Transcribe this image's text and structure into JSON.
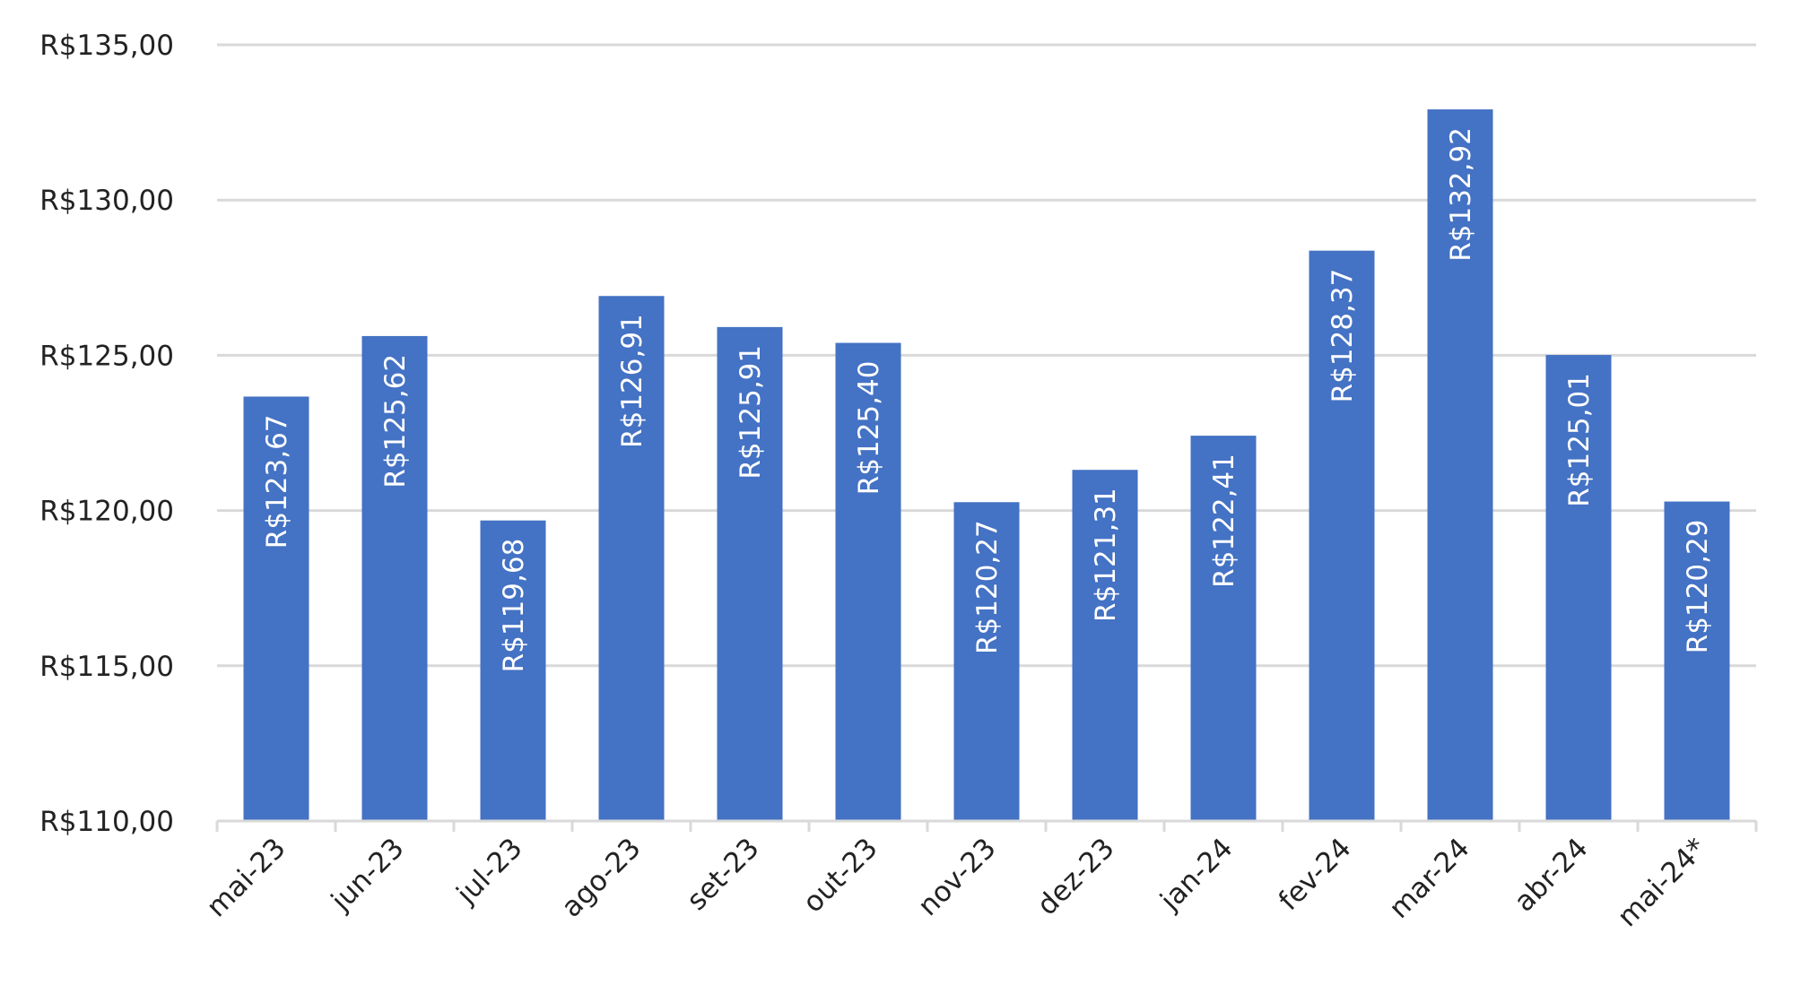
{
  "chart_data": {
    "type": "bar",
    "categories": [
      "mai-23",
      "jun-23",
      "jul-23",
      "ago-23",
      "set-23",
      "out-23",
      "nov-23",
      "dez-23",
      "jan-24",
      "fev-24",
      "mar-24",
      "abr-24",
      "mai-24*"
    ],
    "values": [
      123.67,
      125.62,
      119.68,
      126.91,
      125.91,
      125.4,
      120.27,
      121.31,
      122.41,
      128.37,
      132.92,
      125.01,
      120.29
    ],
    "data_labels": [
      "R$123,67",
      "R$125,62",
      "R$119,68",
      "R$126,91",
      "R$125,91",
      "R$125,40",
      "R$120,27",
      "R$121,31",
      "R$122,41",
      "R$128,37",
      "R$132,92",
      "R$125,01",
      "R$120,29"
    ],
    "y_ticks": [
      110,
      115,
      120,
      125,
      130,
      135
    ],
    "y_tick_labels": [
      "R$110,00",
      "R$115,00",
      "R$120,00",
      "R$125,00",
      "R$130,00",
      "R$135,00"
    ],
    "ylim": [
      110,
      135
    ],
    "grid": true,
    "legend": "none",
    "title": "",
    "xlabel": "",
    "ylabel": "",
    "colors": {
      "bar": "#4472c4",
      "grid": "#d9d9d9",
      "axis": "#d9d9d9",
      "label": "#ffffff",
      "text": "#222222"
    }
  }
}
